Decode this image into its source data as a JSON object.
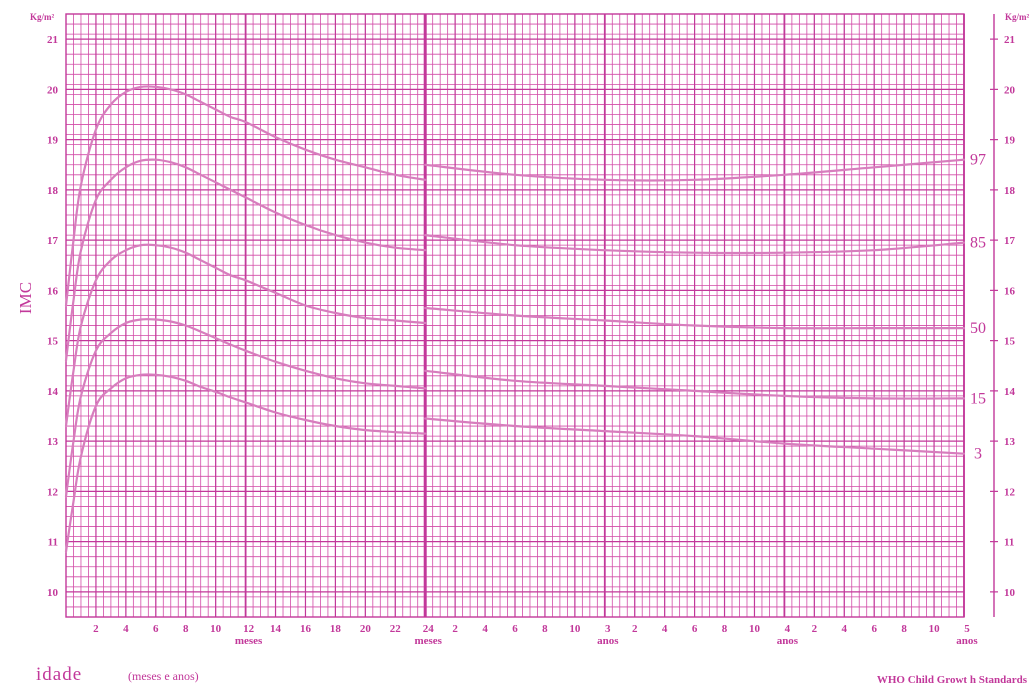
{
  "chart_data": {
    "type": "line",
    "title": "",
    "ylabel": "IMC",
    "y_unit": "Kg/m²",
    "xlabel": "idade",
    "xlabel_sub": "(meses e anos)",
    "source": "WHO Child Growt h Standards",
    "ylim": [
      9.5,
      21.5
    ],
    "xlim_months": [
      0,
      60
    ],
    "y_ticks": [
      10,
      11,
      12,
      13,
      14,
      15,
      16,
      17,
      18,
      19,
      20,
      21
    ],
    "x_ticks": [
      {
        "month": 2,
        "label": "2"
      },
      {
        "month": 4,
        "label": "4"
      },
      {
        "month": 6,
        "label": "6"
      },
      {
        "month": 8,
        "label": "8"
      },
      {
        "month": 10,
        "label": "10"
      },
      {
        "month": 12,
        "label": "12",
        "sub": "meses"
      },
      {
        "month": 14,
        "label": "14"
      },
      {
        "month": 16,
        "label": "16"
      },
      {
        "month": 18,
        "label": "18"
      },
      {
        "month": 20,
        "label": "20"
      },
      {
        "month": 22,
        "label": "22"
      },
      {
        "month": 24,
        "label": "24",
        "sub": "meses"
      },
      {
        "month": 26,
        "label": "2"
      },
      {
        "month": 28,
        "label": "4"
      },
      {
        "month": 30,
        "label": "6"
      },
      {
        "month": 32,
        "label": "8"
      },
      {
        "month": 34,
        "label": "10"
      },
      {
        "month": 36,
        "label": "3",
        "sub": "anos"
      },
      {
        "month": 38,
        "label": "2"
      },
      {
        "month": 40,
        "label": "4"
      },
      {
        "month": 42,
        "label": "6"
      },
      {
        "month": 44,
        "label": "8"
      },
      {
        "month": 46,
        "label": "10"
      },
      {
        "month": 48,
        "label": "4",
        "sub": "anos"
      },
      {
        "month": 50,
        "label": "2"
      },
      {
        "month": 52,
        "label": "4"
      },
      {
        "month": 54,
        "label": "6"
      },
      {
        "month": 56,
        "label": "8"
      },
      {
        "month": 58,
        "label": "10"
      },
      {
        "month": 60,
        "label": "5",
        "sub": "anos"
      }
    ],
    "grid": true,
    "colors": {
      "line": "#d77dbd",
      "grid": "#d24aa7",
      "major": "#c2389a",
      "text": "#c2389a"
    },
    "series": [
      {
        "name": "97",
        "segment_a": {
          "x": [
            0,
            0.5,
            1,
            2,
            3,
            4,
            5,
            6,
            7,
            8,
            9,
            10,
            11,
            12,
            14,
            16,
            18,
            20,
            22,
            24
          ],
          "y": [
            15.7,
            17.0,
            18.1,
            19.2,
            19.7,
            19.95,
            20.05,
            20.05,
            20.0,
            19.9,
            19.75,
            19.6,
            19.45,
            19.35,
            19.05,
            18.8,
            18.6,
            18.45,
            18.3,
            18.2
          ]
        },
        "segment_b": {
          "x": [
            24,
            30,
            36,
            42,
            48,
            54,
            60
          ],
          "y": [
            18.5,
            18.3,
            18.2,
            18.2,
            18.3,
            18.45,
            18.6
          ]
        }
      },
      {
        "name": "85",
        "segment_a": {
          "x": [
            0,
            0.5,
            1,
            2,
            3,
            4,
            5,
            6,
            7,
            8,
            9,
            10,
            11,
            12,
            14,
            16,
            18,
            20,
            22,
            24
          ],
          "y": [
            14.6,
            15.8,
            16.8,
            17.8,
            18.2,
            18.45,
            18.58,
            18.6,
            18.55,
            18.45,
            18.3,
            18.15,
            18.0,
            17.85,
            17.55,
            17.3,
            17.1,
            16.95,
            16.85,
            16.8
          ]
        },
        "segment_b": {
          "x": [
            24,
            30,
            36,
            42,
            48,
            54,
            60
          ],
          "y": [
            17.1,
            16.9,
            16.8,
            16.75,
            16.75,
            16.8,
            16.95
          ]
        }
      },
      {
        "name": "50",
        "segment_a": {
          "x": [
            0,
            0.5,
            1,
            2,
            3,
            4,
            5,
            6,
            7,
            8,
            9,
            10,
            11,
            12,
            14,
            16,
            18,
            20,
            22,
            24
          ],
          "y": [
            13.3,
            14.4,
            15.3,
            16.2,
            16.6,
            16.8,
            16.9,
            16.9,
            16.85,
            16.75,
            16.6,
            16.45,
            16.3,
            16.2,
            15.95,
            15.7,
            15.55,
            15.45,
            15.4,
            15.35
          ]
        },
        "segment_b": {
          "x": [
            24,
            30,
            36,
            42,
            48,
            54,
            60
          ],
          "y": [
            15.65,
            15.5,
            15.4,
            15.3,
            15.25,
            15.25,
            15.25
          ]
        }
      },
      {
        "name": "15",
        "segment_a": {
          "x": [
            0,
            0.5,
            1,
            2,
            3,
            4,
            5,
            6,
            7,
            8,
            9,
            10,
            11,
            12,
            14,
            16,
            18,
            20,
            22,
            24
          ],
          "y": [
            11.9,
            13.0,
            13.9,
            14.8,
            15.15,
            15.35,
            15.42,
            15.42,
            15.38,
            15.3,
            15.18,
            15.05,
            14.92,
            14.8,
            14.58,
            14.4,
            14.25,
            14.15,
            14.1,
            14.05
          ]
        },
        "segment_b": {
          "x": [
            24,
            30,
            36,
            42,
            48,
            54,
            60
          ],
          "y": [
            14.4,
            14.2,
            14.1,
            14.0,
            13.9,
            13.85,
            13.85
          ]
        }
      },
      {
        "name": "3",
        "segment_a": {
          "x": [
            0,
            0.5,
            1,
            2,
            3,
            4,
            5,
            6,
            7,
            8,
            9,
            10,
            11,
            12,
            14,
            16,
            18,
            20,
            22,
            24
          ],
          "y": [
            10.8,
            11.8,
            12.7,
            13.7,
            14.05,
            14.25,
            14.32,
            14.32,
            14.28,
            14.2,
            14.08,
            13.98,
            13.87,
            13.77,
            13.57,
            13.42,
            13.3,
            13.22,
            13.18,
            13.15
          ]
        },
        "segment_b": {
          "x": [
            24,
            30,
            36,
            42,
            48,
            54,
            60
          ],
          "y": [
            13.45,
            13.3,
            13.2,
            13.1,
            12.95,
            12.85,
            12.75
          ]
        }
      }
    ]
  }
}
